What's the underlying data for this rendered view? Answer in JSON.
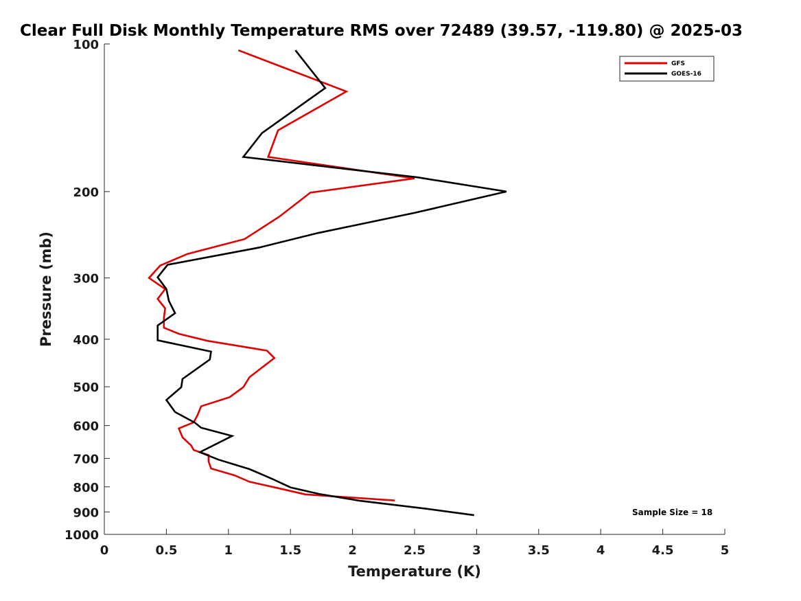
{
  "chart_data": {
    "type": "line",
    "title": "Clear Full Disk Monthly Temperature RMS over 72489 (39.57, -119.80) @ 2025-03",
    "xlabel": "Temperature (K)",
    "ylabel": "Pressure (mb)",
    "xlim": [
      0,
      5
    ],
    "ylim": [
      100,
      1000
    ],
    "y_scale": "log",
    "y_reversed": true,
    "x_ticks": [
      "0",
      "0.5",
      "1",
      "1.5",
      "2",
      "2.5",
      "3",
      "3.5",
      "4",
      "4.5",
      "5"
    ],
    "y_ticks": [
      "100",
      "200",
      "300",
      "400",
      "500",
      "600",
      "700",
      "800",
      "900",
      "1000"
    ],
    "grid": false,
    "legend_position": "top-right",
    "annotation": "Sample Size = 18",
    "series": [
      {
        "name": "GFS",
        "color": "#e00000",
        "points": [
          [
            1.08,
            103
          ],
          [
            1.95,
            125
          ],
          [
            1.4,
            150
          ],
          [
            1.32,
            170
          ],
          [
            2.5,
            188
          ],
          [
            1.66,
            201
          ],
          [
            1.41,
            225
          ],
          [
            1.13,
            250
          ],
          [
            0.67,
            268
          ],
          [
            0.45,
            283
          ],
          [
            0.36,
            300
          ],
          [
            0.49,
            316
          ],
          [
            0.43,
            331
          ],
          [
            0.49,
            346
          ],
          [
            0.48,
            362
          ],
          [
            0.48,
            379
          ],
          [
            0.6,
            390
          ],
          [
            0.83,
            403
          ],
          [
            1.31,
            422
          ],
          [
            1.37,
            437
          ],
          [
            1.28,
            455
          ],
          [
            1.17,
            478
          ],
          [
            1.12,
            501
          ],
          [
            1.01,
            525
          ],
          [
            0.78,
            548
          ],
          [
            0.75,
            572
          ],
          [
            0.72,
            591
          ],
          [
            0.6,
            608
          ],
          [
            0.63,
            634
          ],
          [
            0.7,
            659
          ],
          [
            0.72,
            673
          ],
          [
            0.84,
            689
          ],
          [
            0.84,
            710
          ],
          [
            0.86,
            734
          ],
          [
            1.05,
            758
          ],
          [
            1.17,
            781
          ],
          [
            1.4,
            805
          ],
          [
            1.62,
            829
          ],
          [
            2.34,
            853
          ]
        ]
      },
      {
        "name": "GOES-16",
        "color": "#000000",
        "points": [
          [
            1.54,
            103
          ],
          [
            1.78,
            123
          ],
          [
            1.27,
            152
          ],
          [
            1.12,
            170
          ],
          [
            2.52,
            187
          ],
          [
            3.24,
            200
          ],
          [
            2.5,
            221
          ],
          [
            1.72,
            243
          ],
          [
            1.25,
            260
          ],
          [
            0.51,
            282
          ],
          [
            0.43,
            299
          ],
          [
            0.5,
            316
          ],
          [
            0.52,
            334
          ],
          [
            0.57,
            354
          ],
          [
            0.43,
            375
          ],
          [
            0.43,
            402
          ],
          [
            0.86,
            424
          ],
          [
            0.85,
            440
          ],
          [
            0.63,
            482
          ],
          [
            0.62,
            501
          ],
          [
            0.5,
            532
          ],
          [
            0.57,
            563
          ],
          [
            0.73,
            592
          ],
          [
            0.78,
            606
          ],
          [
            1.03,
            630
          ],
          [
            0.77,
            680
          ],
          [
            0.92,
            704
          ],
          [
            1.17,
            736
          ],
          [
            1.35,
            770
          ],
          [
            1.5,
            802
          ],
          [
            1.73,
            827
          ],
          [
            2.06,
            854
          ],
          [
            2.6,
            887
          ],
          [
            2.98,
            914
          ]
        ]
      }
    ]
  }
}
